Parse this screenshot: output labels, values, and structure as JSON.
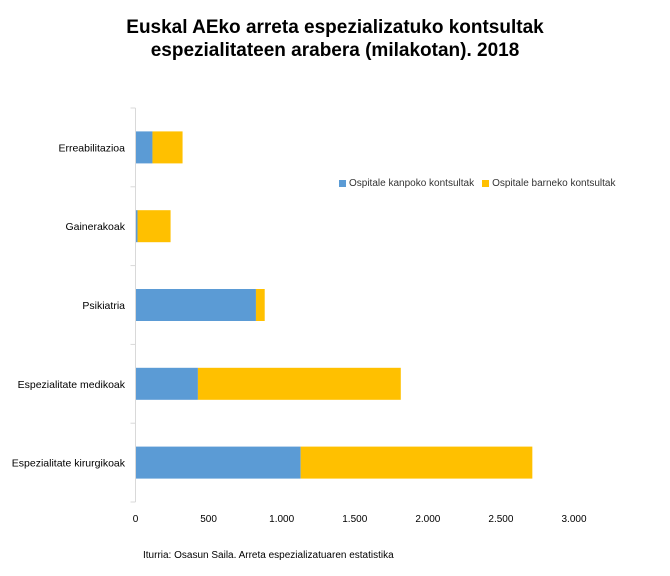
{
  "chart_data": {
    "type": "bar",
    "orientation": "horizontal-stacked",
    "title_lines": [
      "Euskal AEko arreta espezializatuko kontsultak",
      "espezialitateen arabera (milakotan). 2018"
    ],
    "categories": [
      "Erreabilitazioa",
      "Gainerakoak",
      "Psikiatria",
      "Espezialitate medikoak",
      "Espezialitate kirurgikoak"
    ],
    "series": [
      {
        "name": "Ospitale kanpoko kontsultak",
        "color": "#5B9BD5",
        "values": [
          116,
          14,
          824,
          427,
          1130
        ]
      },
      {
        "name": "Ospitale barneko kontsultak",
        "color": "#FFC000",
        "values": [
          206,
          226,
          60,
          1388,
          1585
        ]
      }
    ],
    "xlim": [
      0,
      3000
    ],
    "xticks": [
      0,
      500,
      1000,
      1500,
      2000,
      2500,
      3000
    ],
    "xtick_labels": [
      "0",
      "500",
      "1.000",
      "1.500",
      "2.000",
      "2.500",
      "3.000"
    ],
    "xlabel": "",
    "ylabel": "",
    "grid": false,
    "legend_placement": "right",
    "source": "Iturria: Osasun Saila. Arreta espezializatuaren estatistika"
  }
}
